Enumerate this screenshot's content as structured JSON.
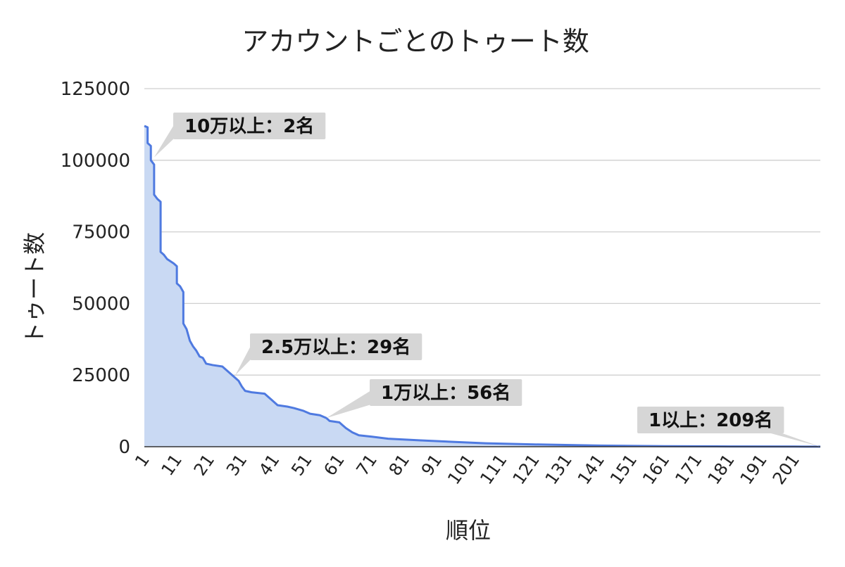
{
  "chart_data": {
    "type": "area",
    "title": "アカウントごとのトゥート数",
    "xlabel": "順位",
    "ylabel": "トゥート数",
    "xlim": [
      1,
      209
    ],
    "ylim": [
      0,
      125000
    ],
    "yticks": [
      "0",
      "25000",
      "50000",
      "75000",
      "100000",
      "125000"
    ],
    "xticks": [
      "1",
      "11",
      "21",
      "31",
      "41",
      "51",
      "61",
      "71",
      "81",
      "91",
      "101",
      "111",
      "121",
      "131",
      "141",
      "151",
      "161",
      "171",
      "181",
      "191",
      "201"
    ],
    "grid": true,
    "legend": "none",
    "colors": {
      "line": "#4f7ae0",
      "fill": "#c9d9f3",
      "callout": "#d6d6d6"
    },
    "series": [
      {
        "points": [
          [
            1,
            112000
          ],
          [
            2,
            111500
          ],
          [
            2,
            106000
          ],
          [
            3,
            105000
          ],
          [
            3,
            100000
          ],
          [
            4,
            98500
          ],
          [
            4,
            88000
          ],
          [
            5,
            86500
          ],
          [
            6,
            85500
          ],
          [
            6,
            68000
          ],
          [
            7,
            67000
          ],
          [
            8,
            65500
          ],
          [
            10,
            64000
          ],
          [
            11,
            63000
          ],
          [
            11,
            57000
          ],
          [
            12,
            56000
          ],
          [
            13,
            54000
          ],
          [
            13,
            43000
          ],
          [
            14,
            41000
          ],
          [
            15,
            37000
          ],
          [
            16,
            35000
          ],
          [
            17,
            33500
          ],
          [
            18,
            31500
          ],
          [
            19,
            31000
          ],
          [
            20,
            29000
          ],
          [
            22,
            28500
          ],
          [
            25,
            28000
          ],
          [
            27,
            26000
          ],
          [
            29,
            24000
          ],
          [
            30,
            23000
          ],
          [
            31,
            21000
          ],
          [
            32,
            19500
          ],
          [
            34,
            19000
          ],
          [
            38,
            18500
          ],
          [
            40,
            16500
          ],
          [
            41,
            15500
          ],
          [
            42,
            14500
          ],
          [
            45,
            14000
          ],
          [
            47,
            13500
          ],
          [
            50,
            12500
          ],
          [
            52,
            11500
          ],
          [
            55,
            11000
          ],
          [
            57,
            10000
          ],
          [
            58,
            9000
          ],
          [
            61,
            8500
          ],
          [
            62,
            7500
          ],
          [
            63,
            6500
          ],
          [
            65,
            5000
          ],
          [
            67,
            4000
          ],
          [
            71,
            3500
          ],
          [
            76,
            2800
          ],
          [
            86,
            2200
          ],
          [
            96,
            1700
          ],
          [
            106,
            1200
          ],
          [
            121,
            800
          ],
          [
            141,
            400
          ],
          [
            161,
            200
          ],
          [
            181,
            100
          ],
          [
            201,
            50
          ],
          [
            209,
            30
          ]
        ]
      }
    ],
    "annotations": [
      {
        "text": "10万以上：2名",
        "x": 4,
        "y": 101000
      },
      {
        "text": "2.5万以上：29名",
        "x": 29,
        "y": 25000
      },
      {
        "text": "1万以上：56名",
        "x": 57,
        "y": 10000
      },
      {
        "text": "1以上：209名",
        "x": 209,
        "y": 0
      }
    ]
  }
}
